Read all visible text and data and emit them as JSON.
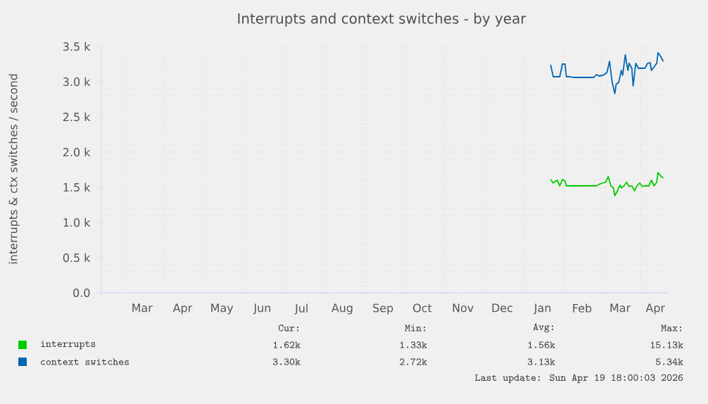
{
  "chart_data": {
    "type": "line",
    "title": "Interrupts and context switches - by year",
    "ylabel": "interrupts & ctx switches / second",
    "xlim": [
      "2025-02-13",
      "2026-04-21"
    ],
    "xticks": [
      {
        "value": "2025-03-01",
        "label": null
      },
      {
        "value": "2025-03-16",
        "label": "Mar"
      },
      {
        "value": "2025-04-01",
        "label": null
      },
      {
        "value": "2025-04-16",
        "label": "Apr"
      },
      {
        "value": "2025-05-01",
        "label": null
      },
      {
        "value": "2025-05-16",
        "label": "May"
      },
      {
        "value": "2025-06-01",
        "label": null
      },
      {
        "value": "2025-06-16",
        "label": "Jun"
      },
      {
        "value": "2025-07-01",
        "label": null
      },
      {
        "value": "2025-07-16",
        "label": "Jul"
      },
      {
        "value": "2025-08-01",
        "label": null
      },
      {
        "value": "2025-08-16",
        "label": "Aug"
      },
      {
        "value": "2025-09-01",
        "label": null
      },
      {
        "value": "2025-09-16",
        "label": "Sep"
      },
      {
        "value": "2025-10-01",
        "label": null
      },
      {
        "value": "2025-10-16",
        "label": "Oct"
      },
      {
        "value": "2025-11-01",
        "label": null
      },
      {
        "value": "2025-11-16",
        "label": "Nov"
      },
      {
        "value": "2025-12-01",
        "label": null
      },
      {
        "value": "2025-12-16",
        "label": "Dec"
      },
      {
        "value": "2026-01-01",
        "label": null
      },
      {
        "value": "2026-01-16",
        "label": "Jan"
      },
      {
        "value": "2026-02-01",
        "label": null
      },
      {
        "value": "2026-02-15",
        "label": "Feb"
      },
      {
        "value": "2026-03-01",
        "label": null
      },
      {
        "value": "2026-03-16",
        "label": "Mar"
      },
      {
        "value": "2026-04-01",
        "label": null
      },
      {
        "value": "2026-04-12",
        "label": "Apr"
      }
    ],
    "ylim": [
      0,
      3500
    ],
    "yticks": [
      {
        "value": 0,
        "label": "0.0"
      },
      {
        "value": 500,
        "label": "0.5 k"
      },
      {
        "value": 1000,
        "label": "1.0 k"
      },
      {
        "value": 1500,
        "label": "1.5 k"
      },
      {
        "value": 2000,
        "label": "2.0 k"
      },
      {
        "value": 2500,
        "label": "2.5 k"
      },
      {
        "value": 3000,
        "label": "3.0 k"
      },
      {
        "value": 3500,
        "label": "3.5 k"
      }
    ],
    "grid": true,
    "legend": "bottom",
    "series": [
      {
        "name": "interrupts",
        "color": "#00cc00",
        "x": [
          "2026-01-22",
          "2026-01-24",
          "2026-01-27",
          "2026-01-29",
          "2026-01-31",
          "2026-02-02",
          "2026-02-03",
          "2026-02-26",
          "2026-03-01",
          "2026-03-05",
          "2026-03-07",
          "2026-03-09",
          "2026-03-11",
          "2026-03-12",
          "2026-03-14",
          "2026-03-16",
          "2026-03-17",
          "2026-03-19",
          "2026-03-21",
          "2026-03-23",
          "2026-03-25",
          "2026-03-27",
          "2026-03-29",
          "2026-03-31",
          "2026-04-02",
          "2026-04-04",
          "2026-04-07",
          "2026-04-09",
          "2026-04-11",
          "2026-04-13",
          "2026-04-14",
          "2026-04-16",
          "2026-04-18"
        ],
        "values": [
          1610,
          1560,
          1600,
          1520,
          1610,
          1590,
          1520,
          1520,
          1550,
          1570,
          1650,
          1520,
          1490,
          1380,
          1450,
          1530,
          1490,
          1520,
          1570,
          1510,
          1520,
          1450,
          1520,
          1560,
          1510,
          1520,
          1520,
          1600,
          1520,
          1570,
          1710,
          1660,
          1630
        ]
      },
      {
        "name": "context switches",
        "color": "#0066b3",
        "x": [
          "2026-01-22",
          "2026-01-24",
          "2026-01-29",
          "2026-01-31",
          "2026-02-02",
          "2026-02-03",
          "2026-02-06",
          "2026-02-08",
          "2026-02-24",
          "2026-02-26",
          "2026-02-28",
          "2026-03-03",
          "2026-03-06",
          "2026-03-08",
          "2026-03-10",
          "2026-03-12",
          "2026-03-13",
          "2026-03-15",
          "2026-03-17",
          "2026-03-18",
          "2026-03-20",
          "2026-03-22",
          "2026-03-23",
          "2026-03-25",
          "2026-03-26",
          "2026-03-28",
          "2026-03-30",
          "2026-04-02",
          "2026-04-04",
          "2026-04-06",
          "2026-04-08",
          "2026-04-09",
          "2026-04-11",
          "2026-04-13",
          "2026-04-14",
          "2026-04-16",
          "2026-04-18"
        ],
        "values": [
          3240,
          3070,
          3070,
          3250,
          3250,
          3070,
          3070,
          3060,
          3060,
          3100,
          3080,
          3090,
          3130,
          3290,
          2990,
          2830,
          2960,
          2990,
          3160,
          3090,
          3380,
          3160,
          3260,
          3190,
          2940,
          3260,
          3190,
          3190,
          3190,
          3260,
          3270,
          3160,
          3210,
          3260,
          3410,
          3360,
          3290
        ]
      }
    ],
    "annotations": [
      "Cur:",
      "Min:",
      "Avg:",
      "Max:",
      "1.62k",
      "1.33k",
      "1.56k",
      "15.13k",
      "3.30k",
      "2.72k",
      "3.13k",
      "5.34k",
      "Last update: Sun Apr 19 18:00:03 2026"
    ]
  }
}
